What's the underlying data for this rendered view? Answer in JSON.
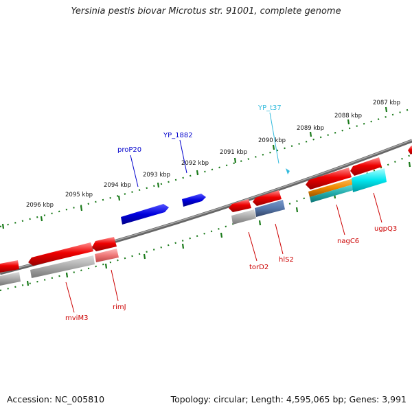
{
  "title": "Yersinia pestis biovar Microtus str. 91001, complete genome",
  "footer": {
    "accession": "Accession: NC_005810",
    "summary": "Topology: circular; Length: 4,595,065 bp; Genes: 3,991"
  },
  "colors": {
    "backbone": "#7a7a7a",
    "tick": "#1a7a1a",
    "forward_gene": "#0000dd",
    "reverse_gene": "#ee0000",
    "trna": "#33bbdd",
    "cds_gray": "#aaaaaa",
    "cds_blue_gray": "#5577aa",
    "cds_orange": "#ee8800",
    "cds_cyan": "#00e5ee",
    "cds_pink": "#ee7777"
  },
  "kbp_labels": [
    "2096 kbp",
    "2095 kbp",
    "2094 kbp",
    "2093 kbp",
    "2092 kbp",
    "2091 kbp",
    "2090 kbp",
    "2089 kbp",
    "2088 kbp",
    "2087 kbp"
  ],
  "gene_labels": {
    "proP20": "proP20",
    "YP_1882": "YP_1882",
    "YP_t37": "YP_t37",
    "mviM3": "mviM3",
    "rimJ": "rimJ",
    "torD2": "torD2",
    "hlS2": "hlS2",
    "nagC6": "nagC6",
    "ugpQ3": "ugpQ3"
  }
}
